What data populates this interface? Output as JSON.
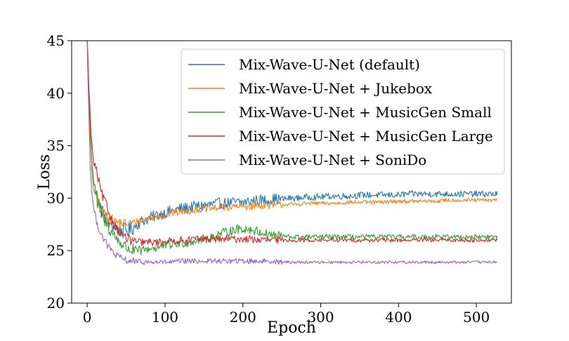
{
  "chart_data": {
    "type": "line",
    "title": "",
    "xlabel": "Epoch",
    "ylabel": "Loss",
    "xlim": [
      -20,
      545
    ],
    "ylim": [
      20,
      45
    ],
    "xticks": [
      0,
      100,
      200,
      300,
      400,
      500
    ],
    "yticks": [
      20,
      25,
      30,
      35,
      40,
      45
    ],
    "grid": false,
    "legend_position": "top-right",
    "series": [
      {
        "name": "Mix-Wave-U-Net (default)",
        "color": "#1f77b4",
        "noise": 0.55,
        "x": [
          0,
          2,
          4,
          6,
          8,
          10,
          12,
          15,
          18,
          22,
          26,
          30,
          35,
          40,
          45,
          50,
          55,
          60,
          70,
          80,
          90,
          100,
          110,
          120,
          130,
          140,
          150,
          160,
          170,
          180,
          190,
          200,
          210,
          220,
          230,
          240,
          250,
          260,
          270,
          280,
          290,
          300,
          310,
          320,
          330,
          340,
          350,
          360,
          370,
          380,
          390,
          400,
          410,
          420,
          430,
          440,
          450,
          460,
          470,
          480,
          490,
          500,
          510,
          520,
          527
        ],
        "y": [
          45,
          40,
          36,
          33,
          31.5,
          30.5,
          30,
          29.3,
          28.8,
          28.3,
          27.9,
          27.6,
          27.3,
          27.0,
          26.9,
          26.9,
          27.0,
          27.3,
          27.8,
          28.1,
          28.4,
          28.6,
          28.8,
          29.0,
          29.1,
          29.2,
          29.3,
          29.4,
          29.5,
          29.5,
          29.6,
          29.6,
          29.7,
          29.8,
          29.8,
          29.9,
          29.9,
          30.0,
          30.0,
          30.1,
          30.1,
          30.1,
          30.2,
          30.2,
          30.2,
          30.2,
          30.3,
          30.3,
          30.3,
          30.3,
          30.3,
          30.3,
          30.4,
          30.4,
          30.4,
          30.4,
          30.4,
          30.4,
          30.4,
          30.4,
          30.4,
          30.4,
          30.4,
          30.4,
          30.4
        ]
      },
      {
        "name": "Mix-Wave-U-Net + Jukebox",
        "color": "#ff7f0e",
        "noise": 0.35,
        "x": [
          0,
          2,
          4,
          6,
          8,
          10,
          12,
          15,
          18,
          22,
          26,
          30,
          35,
          40,
          45,
          50,
          55,
          60,
          70,
          80,
          90,
          100,
          110,
          120,
          130,
          140,
          150,
          160,
          170,
          180,
          190,
          200,
          210,
          220,
          230,
          240,
          250,
          260,
          270,
          280,
          290,
          300,
          310,
          320,
          330,
          340,
          350,
          360,
          370,
          380,
          390,
          400,
          410,
          420,
          430,
          440,
          450,
          460,
          470,
          480,
          490,
          500,
          510,
          520,
          527
        ],
        "y": [
          44,
          39.5,
          35.5,
          32.8,
          31.3,
          30.4,
          29.8,
          29.2,
          28.8,
          28.5,
          28.2,
          28.0,
          27.8,
          27.7,
          27.6,
          27.6,
          27.6,
          27.7,
          27.9,
          28.1,
          28.3,
          28.4,
          28.6,
          28.7,
          28.8,
          28.9,
          29.0,
          29.0,
          29.1,
          29.1,
          29.2,
          29.2,
          29.2,
          29.3,
          29.3,
          29.3,
          29.4,
          29.4,
          29.4,
          29.5,
          29.5,
          29.5,
          29.5,
          29.5,
          29.6,
          29.6,
          29.6,
          29.6,
          29.6,
          29.6,
          29.7,
          29.7,
          29.7,
          29.7,
          29.7,
          29.7,
          29.7,
          29.8,
          29.8,
          29.8,
          29.8,
          29.8,
          29.8,
          29.8,
          29.8
        ]
      },
      {
        "name": "Mix-Wave-U-Net + MusicGen Small",
        "color": "#2ca02c",
        "noise": 0.45,
        "x": [
          0,
          2,
          4,
          6,
          8,
          10,
          12,
          15,
          18,
          22,
          26,
          30,
          35,
          40,
          45,
          50,
          55,
          60,
          70,
          80,
          90,
          100,
          110,
          120,
          130,
          140,
          150,
          160,
          170,
          180,
          190,
          200,
          210,
          220,
          230,
          240,
          250,
          260,
          270,
          280,
          290,
          300,
          310,
          320,
          330,
          340,
          350,
          360,
          370,
          380,
          390,
          400,
          410,
          420,
          430,
          440,
          450,
          460,
          470,
          480,
          490,
          500,
          510,
          520,
          527
        ],
        "y": [
          45,
          40.5,
          36.5,
          33.5,
          32,
          31,
          30.2,
          29.4,
          28.7,
          28.0,
          27.4,
          26.9,
          26.4,
          26.0,
          25.6,
          25.3,
          25.1,
          25.0,
          25.0,
          25.2,
          25.3,
          25.5,
          25.6,
          25.7,
          25.8,
          26.0,
          26.1,
          26.3,
          26.6,
          26.8,
          27.0,
          27.1,
          27.0,
          26.8,
          26.6,
          26.5,
          26.4,
          26.3,
          26.3,
          26.3,
          26.3,
          26.3,
          26.3,
          26.3,
          26.3,
          26.3,
          26.3,
          26.3,
          26.3,
          26.3,
          26.3,
          26.3,
          26.3,
          26.3,
          26.3,
          26.3,
          26.4,
          26.3,
          26.3,
          26.3,
          26.3,
          26.3,
          26.3,
          26.3,
          26.3
        ]
      },
      {
        "name": "Mix-Wave-U-Net + MusicGen Large",
        "color": "#d62728",
        "noise": 0.35,
        "x": [
          0,
          2,
          4,
          6,
          8,
          10,
          12,
          15,
          18,
          22,
          26,
          30,
          35,
          40,
          45,
          50,
          55,
          60,
          70,
          80,
          90,
          100,
          110,
          120,
          130,
          140,
          150,
          160,
          170,
          180,
          190,
          200,
          210,
          220,
          230,
          240,
          250,
          260,
          270,
          280,
          290,
          300,
          310,
          320,
          330,
          340,
          350,
          360,
          370,
          380,
          390,
          400,
          410,
          420,
          430,
          440,
          450,
          460,
          470,
          480,
          490,
          500,
          510,
          520,
          527
        ],
        "y": [
          45,
          41,
          37.5,
          35,
          33.5,
          33.0,
          32.5,
          31.5,
          30.5,
          29.8,
          29.0,
          28.2,
          27.5,
          26.9,
          26.5,
          26.2,
          26.0,
          25.9,
          25.8,
          25.8,
          25.8,
          25.9,
          25.9,
          26.0,
          26.0,
          26.1,
          26.1,
          26.1,
          26.1,
          26.1,
          26.1,
          26.1,
          26.1,
          26.0,
          26.0,
          26.0,
          26.0,
          26.0,
          26.0,
          26.0,
          26.0,
          26.0,
          26.0,
          26.0,
          26.0,
          26.0,
          26.0,
          26.0,
          26.0,
          26.0,
          26.0,
          26.0,
          26.0,
          26.0,
          26.0,
          26.0,
          26.0,
          26.0,
          26.0,
          26.0,
          26.0,
          26.0,
          26.0,
          26.0,
          26.0
        ]
      },
      {
        "name": "Mix-Wave-U-Net + SoniDo",
        "color": "#9467bd",
        "noise": 0.25,
        "x": [
          0,
          2,
          4,
          6,
          8,
          10,
          12,
          15,
          18,
          22,
          26,
          30,
          35,
          40,
          45,
          50,
          55,
          60,
          70,
          80,
          90,
          100,
          110,
          120,
          130,
          140,
          150,
          160,
          170,
          180,
          190,
          200,
          210,
          220,
          230,
          240,
          250,
          260,
          270,
          280,
          290,
          300,
          310,
          320,
          330,
          340,
          350,
          360,
          370,
          380,
          390,
          400,
          410,
          420,
          430,
          440,
          450,
          460,
          470,
          480,
          490,
          500,
          510,
          520,
          527
        ],
        "y": [
          45,
          38,
          33,
          30.5,
          29.2,
          28.4,
          27.8,
          27.1,
          26.6,
          26.0,
          25.5,
          25.1,
          24.7,
          24.4,
          24.2,
          24.1,
          24.0,
          24.0,
          23.9,
          23.9,
          23.9,
          23.9,
          23.9,
          24.0,
          24.0,
          24.0,
          24.0,
          24.0,
          24.0,
          24.0,
          24.0,
          24.0,
          24.0,
          24.0,
          24.0,
          24.0,
          23.9,
          23.9,
          23.9,
          23.9,
          23.9,
          23.9,
          23.9,
          23.9,
          23.9,
          23.9,
          23.9,
          23.9,
          23.9,
          23.9,
          23.9,
          23.9,
          23.9,
          23.9,
          23.9,
          23.9,
          23.9,
          23.9,
          23.9,
          23.9,
          23.9,
          23.9,
          23.9,
          23.9,
          23.9
        ]
      }
    ]
  }
}
